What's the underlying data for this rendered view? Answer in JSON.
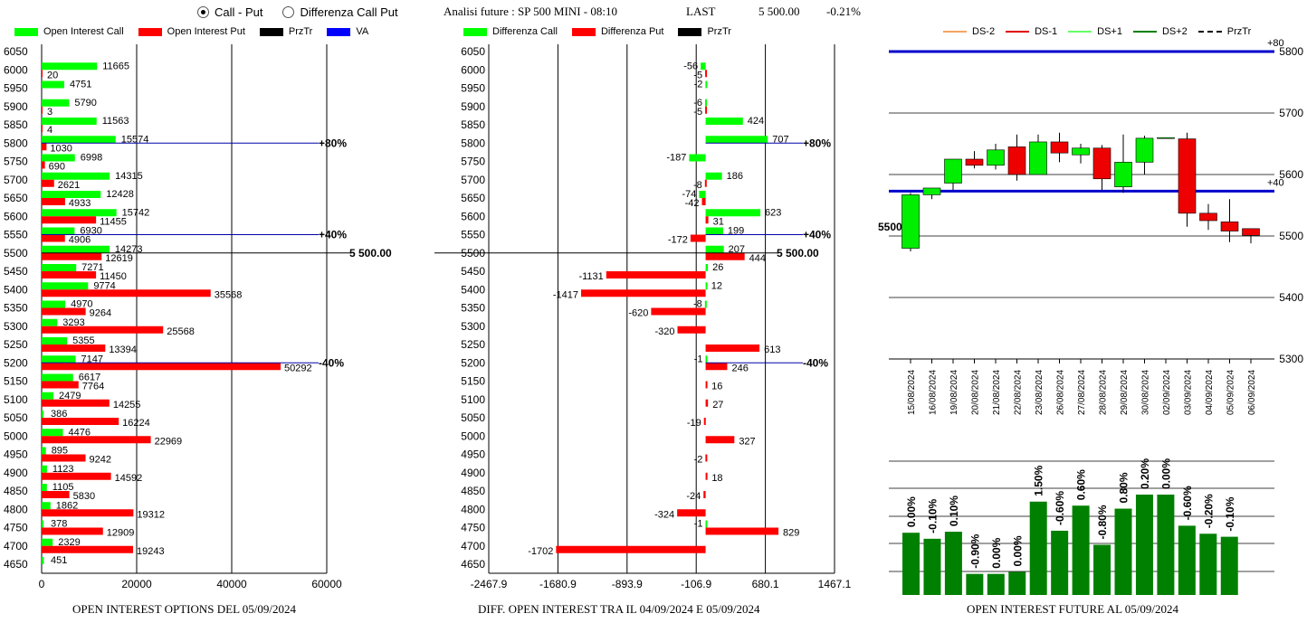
{
  "header": {
    "radio_call_put": "Call - Put",
    "radio_diff": "Differenza Call Put",
    "title": "Analisi future : SP 500 MINI - 08:10",
    "last_label": "LAST",
    "last_value": "5 500.00",
    "change": "-0.21%"
  },
  "legend_left": {
    "call": "Open Interest Call",
    "put": "Open Interest Put",
    "przt": "PrzTr",
    "va": "VA"
  },
  "legend_mid": {
    "call": "Differenza Call",
    "put": "Differenza Put",
    "przt": "PrzTr"
  },
  "legend_right": {
    "ds_2": "DS-2",
    "ds_1": "DS-1",
    "ds_p1": "DS+1",
    "ds_p2": "DS+2",
    "przt": "PrzTr"
  },
  "captions": {
    "left": "OPEN INTEREST OPTIONS DEL 05/09/2024",
    "mid": "DIFF. OPEN INTEREST TRA IL 04/09/2024 E 05/09/2024",
    "right": "OPEN INTEREST FUTURE AL 05/09/2024"
  },
  "colors": {
    "call": "#00ff00",
    "put": "#ff0000",
    "va": "#0000ff",
    "candle_up": "#00ee00",
    "candle_down": "#ee0000",
    "future_bar": "#008000"
  },
  "chart_data": [
    {
      "type": "bar",
      "orientation": "horizontal",
      "strikes": [
        6050,
        6000,
        5950,
        5900,
        5850,
        5800,
        5750,
        5700,
        5650,
        5600,
        5550,
        5500,
        5450,
        5400,
        5350,
        5300,
        5250,
        5200,
        5150,
        5100,
        5050,
        5000,
        4950,
        4900,
        4850,
        4800,
        4750,
        4700,
        4650
      ],
      "series": [
        {
          "name": "Open Interest Call",
          "values": [
            null,
            11665,
            4751,
            5790,
            11563,
            15574,
            6998,
            14315,
            12428,
            15742,
            6930,
            14273,
            7271,
            9774,
            4970,
            3293,
            5355,
            7147,
            6617,
            2479,
            386,
            4476,
            895,
            1123,
            1105,
            1862,
            378,
            2329,
            451
          ]
        },
        {
          "name": "Open Interest Put",
          "values": [
            null,
            20,
            null,
            3,
            4,
            1030,
            690,
            2621,
            4933,
            11455,
            4906,
            12619,
            11450,
            35568,
            9264,
            25568,
            13394,
            50292,
            7764,
            14255,
            16224,
            22969,
            9242,
            14592,
            5830,
            19312,
            12909,
            19243,
            null
          ]
        }
      ],
      "x_ticks": [
        "0",
        "20000",
        "40000",
        "60000"
      ],
      "xlim": [
        0,
        60000
      ],
      "price_lines": [
        {
          "strike": 5800,
          "label": "+80%"
        },
        {
          "strike": 5550,
          "label": "+40%"
        },
        {
          "strike": 5500,
          "label": "5 500.00"
        },
        {
          "strike": 5200,
          "label": "-40%"
        }
      ],
      "grid": true
    },
    {
      "type": "bar",
      "orientation": "horizontal",
      "strikes": [
        6050,
        6000,
        5950,
        5900,
        5850,
        5800,
        5750,
        5700,
        5650,
        5600,
        5550,
        5500,
        5450,
        5400,
        5350,
        5300,
        5250,
        5200,
        5150,
        5100,
        5050,
        5000,
        4950,
        4900,
        4850,
        4800,
        4750,
        4700,
        4650
      ],
      "series": [
        {
          "name": "Differenza Call",
          "values": [
            null,
            -56,
            -2,
            -6,
            424,
            707,
            -187,
            186,
            -74,
            623,
            199,
            207,
            26,
            12,
            -8,
            null,
            null,
            -1,
            null,
            null,
            null,
            null,
            null,
            null,
            null,
            null,
            -1,
            null,
            null
          ]
        },
        {
          "name": "Differenza Put",
          "values": [
            null,
            -5,
            null,
            -5,
            null,
            null,
            null,
            -8,
            -42,
            31,
            -172,
            444,
            -1131,
            -1417,
            -620,
            -320,
            613,
            246,
            16,
            27,
            -19,
            327,
            -2,
            18,
            -24,
            -324,
            829,
            -1702,
            null
          ]
        }
      ],
      "x_ticks": [
        "-2467.9",
        "-1680.9",
        "-893.9",
        "-106.9",
        "680.1",
        "1467.1"
      ],
      "xlim": [
        -2467.9,
        1467.1
      ],
      "price_lines": [
        {
          "strike": 5800,
          "label": "+80%"
        },
        {
          "strike": 5550,
          "label": "+40%"
        },
        {
          "strike": 5500,
          "label": "5 500.00"
        },
        {
          "strike": 5200,
          "label": "-40%"
        }
      ],
      "grid": true
    },
    {
      "type": "candlestick",
      "dates": [
        "15/08/2024",
        "16/08/2024",
        "19/08/2024",
        "20/08/2024",
        "21/08/2024",
        "22/08/2024",
        "23/08/2024",
        "26/08/2024",
        "27/08/2024",
        "28/08/2024",
        "29/08/2024",
        "30/08/2024",
        "02/09/2024",
        "03/09/2024",
        "04/09/2024",
        "05/09/2024",
        "06/09/2024"
      ],
      "ohlc": [
        [
          5480,
          5570,
          5475,
          5567
        ],
        [
          5567,
          5578,
          5560,
          5578
        ],
        [
          5586,
          5625,
          5575,
          5625
        ],
        [
          5625,
          5638,
          5610,
          5615
        ],
        [
          5615,
          5650,
          5608,
          5640
        ],
        [
          5645,
          5665,
          5590,
          5600
        ],
        [
          5600,
          5665,
          5600,
          5653
        ],
        [
          5653,
          5668,
          5620,
          5635
        ],
        [
          5632,
          5650,
          5618,
          5643
        ],
        [
          5643,
          5648,
          5575,
          5593
        ],
        [
          5580,
          5665,
          5570,
          5620
        ],
        [
          5620,
          5663,
          5600,
          5659
        ],
        [
          5660,
          5660,
          5660,
          5660
        ],
        [
          5658,
          5668,
          5515,
          5537
        ],
        [
          5537,
          5552,
          5510,
          5525
        ],
        [
          5523,
          5560,
          5490,
          5508
        ],
        [
          5512,
          5512,
          5488,
          5501
        ]
      ],
      "ylim": [
        5300,
        5800
      ],
      "y_ticks": [
        "5300",
        "5400",
        "5500",
        "5600",
        "5700",
        "5800"
      ],
      "levels": [
        {
          "value": 5800,
          "label": "+80"
        },
        {
          "value": 5573,
          "label": "+40"
        }
      ],
      "price_label": "5500",
      "grid": true
    },
    {
      "type": "bar",
      "values": [
        0.0,
        -0.1,
        0.1,
        -0.9,
        0.0,
        0.0,
        1.5,
        -0.6,
        0.6,
        -0.8,
        0.8,
        0.2,
        0.0,
        -0.6,
        -0.2,
        -0.1
      ],
      "labels": [
        "0.00%",
        "-0.10%",
        "0.10%",
        "-0.90%",
        "0.00%",
        "0.00%",
        "1.50%",
        "-0.60%",
        "0.60%",
        "-0.80%",
        "0.80%",
        "0.20%",
        "0.00%",
        "-0.60%",
        "-0.20%",
        "-0.10%"
      ],
      "open_interest_levels": [
        0.62,
        0.56,
        0.63,
        0.21,
        0.21,
        0.23,
        0.93,
        0.64,
        0.89,
        0.5,
        0.86,
        1.0,
        1.0,
        0.69,
        0.61,
        0.58
      ],
      "grid": true
    }
  ]
}
